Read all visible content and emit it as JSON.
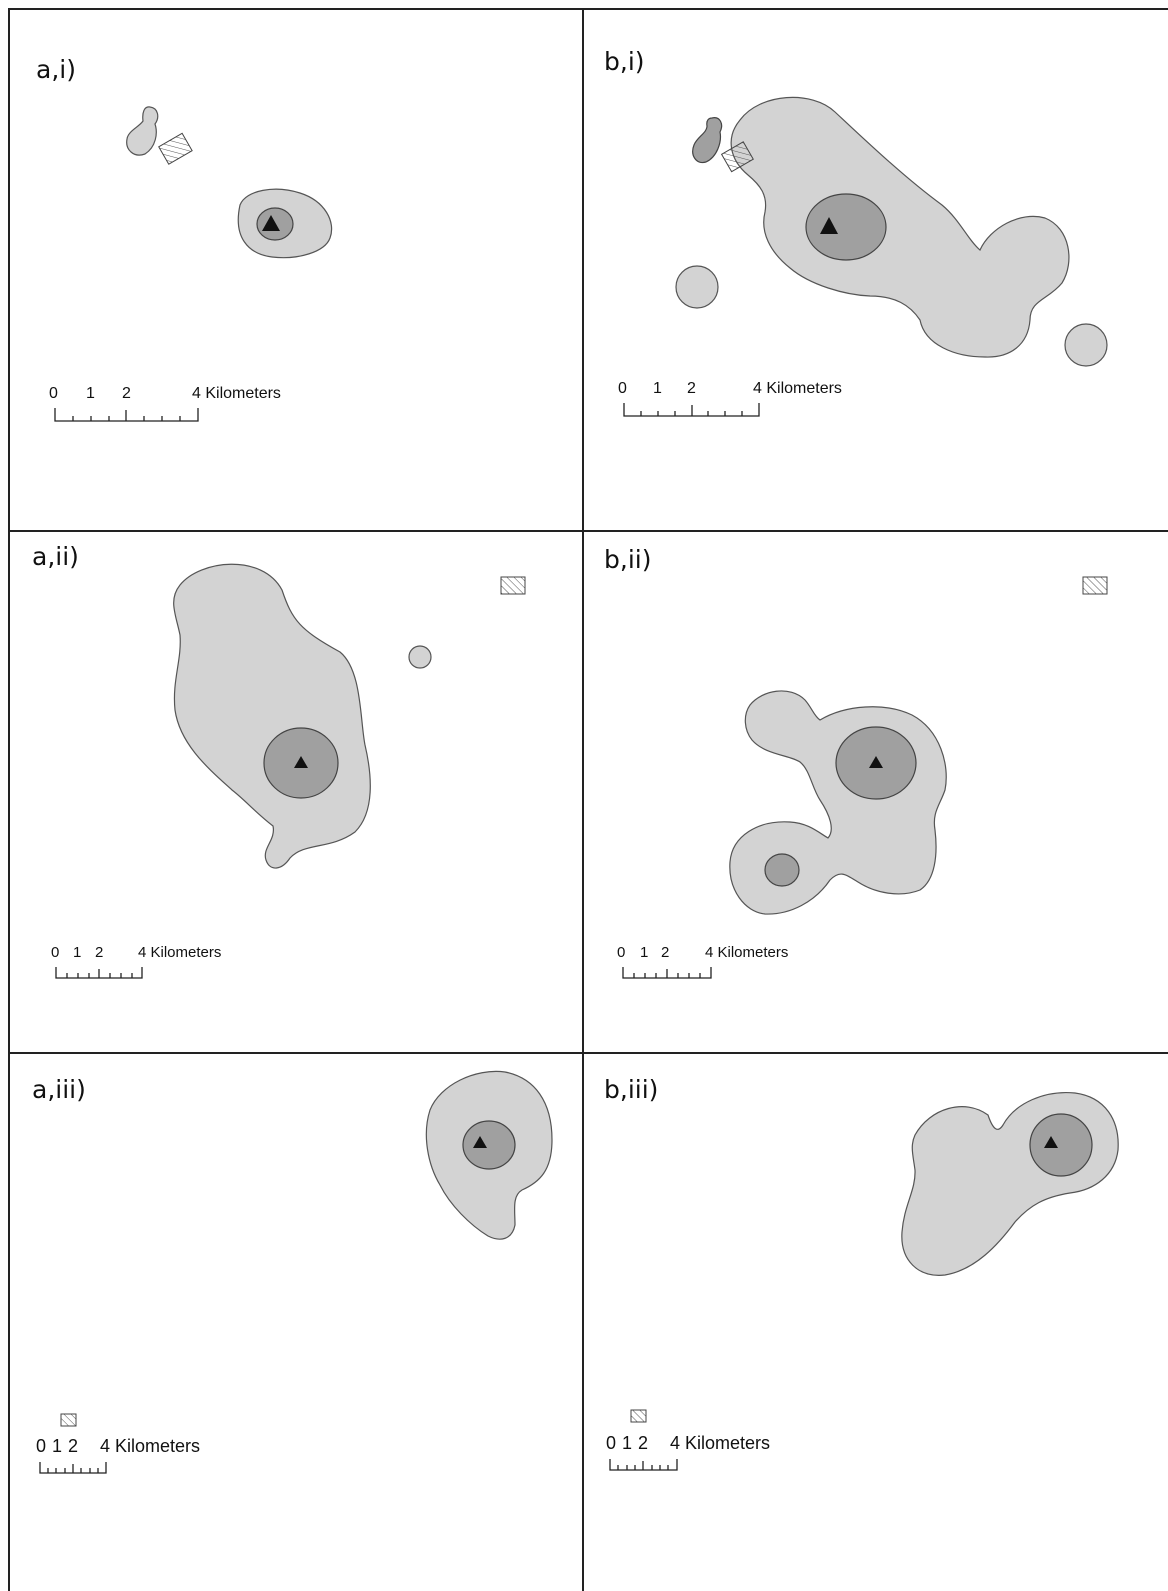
{
  "panels": [
    {
      "id": "a-i",
      "label": "a,i)",
      "scale": {
        "ticks": [
          "0",
          "1",
          "2"
        ],
        "end_label": "4 Kilometers"
      }
    },
    {
      "id": "b-i",
      "label": "b,i)",
      "scale": {
        "ticks": [
          "0",
          "1",
          "2"
        ],
        "end_label": "4 Kilometers"
      }
    },
    {
      "id": "a-ii",
      "label": "a,ii)",
      "scale": {
        "ticks": [
          "0",
          "1",
          "2"
        ],
        "end_label": "4 Kilometers"
      }
    },
    {
      "id": "b-ii",
      "label": "b,ii)",
      "scale": {
        "ticks": [
          "0",
          "1",
          "2"
        ],
        "end_label": "4 Kilometers"
      }
    },
    {
      "id": "a-iii",
      "label": "a,iii)",
      "scale": {
        "ticks": [
          "0",
          "1",
          "2"
        ],
        "end_label": "4 Kilometers"
      }
    },
    {
      "id": "b-iii",
      "label": "b,iii)",
      "scale": {
        "ticks": [
          "0",
          "1",
          "2"
        ],
        "end_label": "4 Kilometers"
      }
    }
  ],
  "colors": {
    "outer_area": "#d3d3d3",
    "core_area": "#a0a0a0",
    "site_marker": "#111111",
    "hatched_box": "#666666"
  },
  "icons": {
    "site_marker": "triangle-icon",
    "reference_site": "hatched-rectangle-icon"
  }
}
